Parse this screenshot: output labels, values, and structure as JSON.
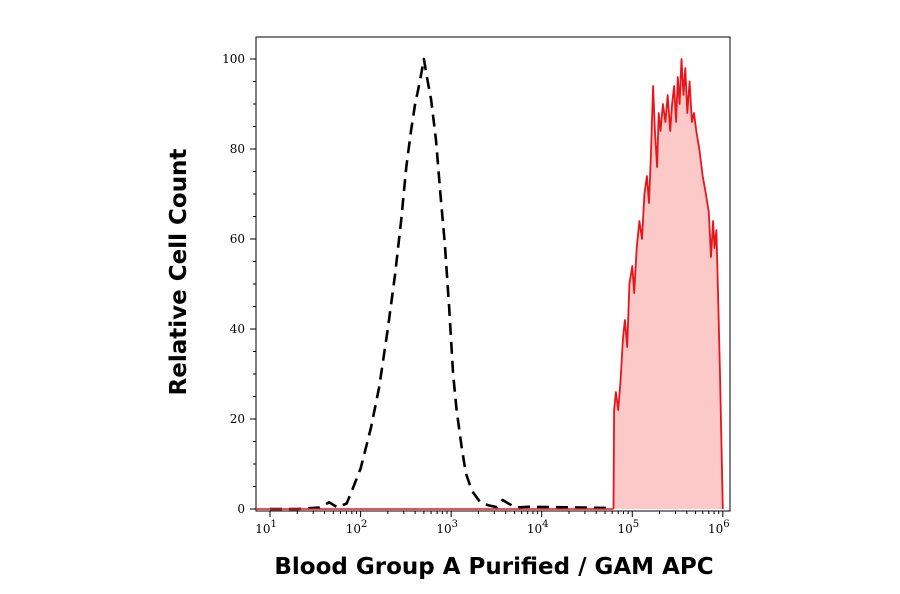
{
  "chart_data": {
    "type": "area",
    "xlabel": "Blood Group A Purified / GAM APC",
    "ylabel": "Relative Cell Count",
    "x_scale": "log",
    "xlim": [
      7,
      1200000
    ],
    "ylim": [
      0,
      102
    ],
    "x_ticks": [
      {
        "value": 10,
        "base": "10",
        "exp": "1"
      },
      {
        "value": 100,
        "base": "10",
        "exp": "2"
      },
      {
        "value": 1000,
        "base": "10",
        "exp": "3"
      },
      {
        "value": 10000,
        "base": "10",
        "exp": "4"
      },
      {
        "value": 100000,
        "base": "10",
        "exp": "5"
      },
      {
        "value": 1000000,
        "base": "10",
        "exp": "6"
      }
    ],
    "y_ticks": [
      0,
      20,
      40,
      60,
      80,
      100
    ],
    "grid": false,
    "series": [
      {
        "style": "dashed",
        "color": "#000000",
        "fill": "none",
        "points": [
          [
            10,
            0
          ],
          [
            20,
            0
          ],
          [
            35,
            0.3
          ],
          [
            45,
            1.5
          ],
          [
            55,
            0.4
          ],
          [
            70,
            1.2
          ],
          [
            80,
            4
          ],
          [
            100,
            9
          ],
          [
            130,
            18
          ],
          [
            160,
            27
          ],
          [
            200,
            40
          ],
          [
            240,
            52
          ],
          [
            280,
            64
          ],
          [
            320,
            76
          ],
          [
            360,
            84
          ],
          [
            400,
            90
          ],
          [
            430,
            93
          ],
          [
            470,
            97
          ],
          [
            500,
            100
          ],
          [
            540,
            96
          ],
          [
            600,
            91
          ],
          [
            680,
            82
          ],
          [
            760,
            70
          ],
          [
            850,
            59
          ],
          [
            950,
            45
          ],
          [
            1050,
            30
          ],
          [
            1150,
            22
          ],
          [
            1300,
            14
          ],
          [
            1450,
            8
          ],
          [
            1700,
            4
          ],
          [
            2100,
            1.5
          ],
          [
            2600,
            0.8
          ],
          [
            3200,
            0.4
          ],
          [
            3700,
            2
          ],
          [
            4300,
            1.2
          ],
          [
            5200,
            0.3
          ],
          [
            7000,
            0.5
          ],
          [
            15000,
            0.4
          ],
          [
            30000,
            0.3
          ],
          [
            60000,
            0.2
          ]
        ]
      },
      {
        "style": "solid",
        "color": "#e8161b",
        "fill": "#fcc9c9",
        "points": [
          [
            62000,
            0
          ],
          [
            63000,
            22
          ],
          [
            66000,
            26
          ],
          [
            70000,
            22
          ],
          [
            74000,
            28
          ],
          [
            79000,
            38
          ],
          [
            83000,
            42
          ],
          [
            88000,
            36
          ],
          [
            93000,
            50
          ],
          [
            100000,
            54
          ],
          [
            105000,
            48
          ],
          [
            112000,
            58
          ],
          [
            120000,
            64
          ],
          [
            128000,
            60
          ],
          [
            136000,
            70
          ],
          [
            145000,
            74
          ],
          [
            153000,
            68
          ],
          [
            160000,
            78
          ],
          [
            170000,
            94
          ],
          [
            178000,
            84
          ],
          [
            188000,
            76
          ],
          [
            196000,
            88
          ],
          [
            205000,
            84
          ],
          [
            218000,
            90
          ],
          [
            232000,
            86
          ],
          [
            246000,
            92
          ],
          [
            262000,
            84
          ],
          [
            275000,
            90
          ],
          [
            290000,
            94
          ],
          [
            305000,
            86
          ],
          [
            318000,
            96
          ],
          [
            333000,
            90
          ],
          [
            350000,
            100
          ],
          [
            368000,
            92
          ],
          [
            385000,
            98
          ],
          [
            405000,
            88
          ],
          [
            430000,
            95
          ],
          [
            455000,
            86
          ],
          [
            480000,
            88
          ],
          [
            510000,
            84
          ],
          [
            550000,
            80
          ],
          [
            600000,
            74
          ],
          [
            650000,
            70
          ],
          [
            700000,
            66
          ],
          [
            740000,
            56
          ],
          [
            780000,
            64
          ],
          [
            810000,
            58
          ],
          [
            850000,
            62
          ],
          [
            880000,
            50
          ],
          [
            930000,
            30
          ],
          [
            1000000,
            0
          ]
        ]
      }
    ]
  }
}
